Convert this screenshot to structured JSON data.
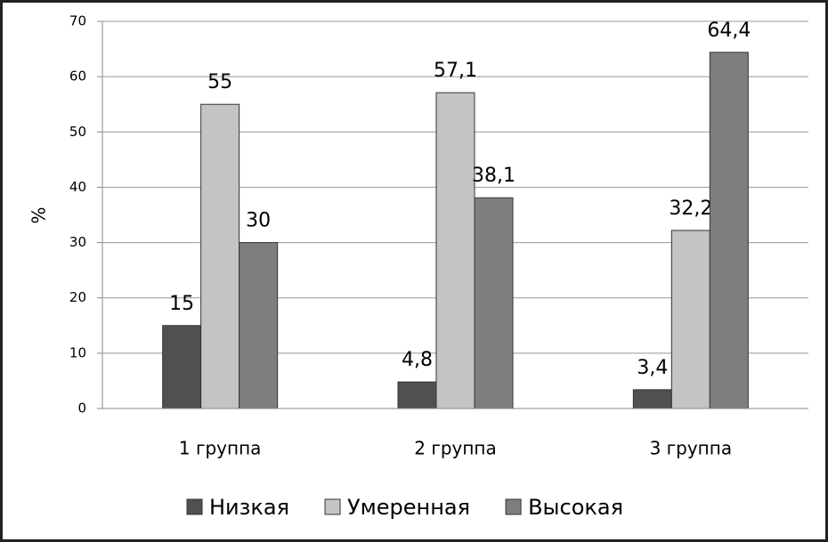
{
  "chart_data": {
    "type": "bar",
    "y_label": "%",
    "categories": [
      "1 группа",
      "2 группа",
      "3 группа"
    ],
    "series": [
      {
        "name": "Низкая",
        "color": "#505050",
        "values": [
          15,
          4.8,
          3.4
        ],
        "value_labels": [
          "15",
          "4,8",
          "3,4"
        ]
      },
      {
        "name": "Умеренная",
        "color": "#c4c4c4",
        "values": [
          55,
          57.1,
          32.2
        ],
        "value_labels": [
          "55",
          "57,1",
          "32,2"
        ]
      },
      {
        "name": "Высокая",
        "color": "#7e7e7e",
        "values": [
          30,
          38.1,
          64.4
        ],
        "value_labels": [
          "30",
          "38,1",
          "64,4"
        ]
      }
    ],
    "ylim": [
      0,
      70
    ],
    "yticks": [
      0,
      10,
      20,
      30,
      40,
      50,
      60,
      70
    ],
    "grid": true,
    "legend": "bottom"
  }
}
